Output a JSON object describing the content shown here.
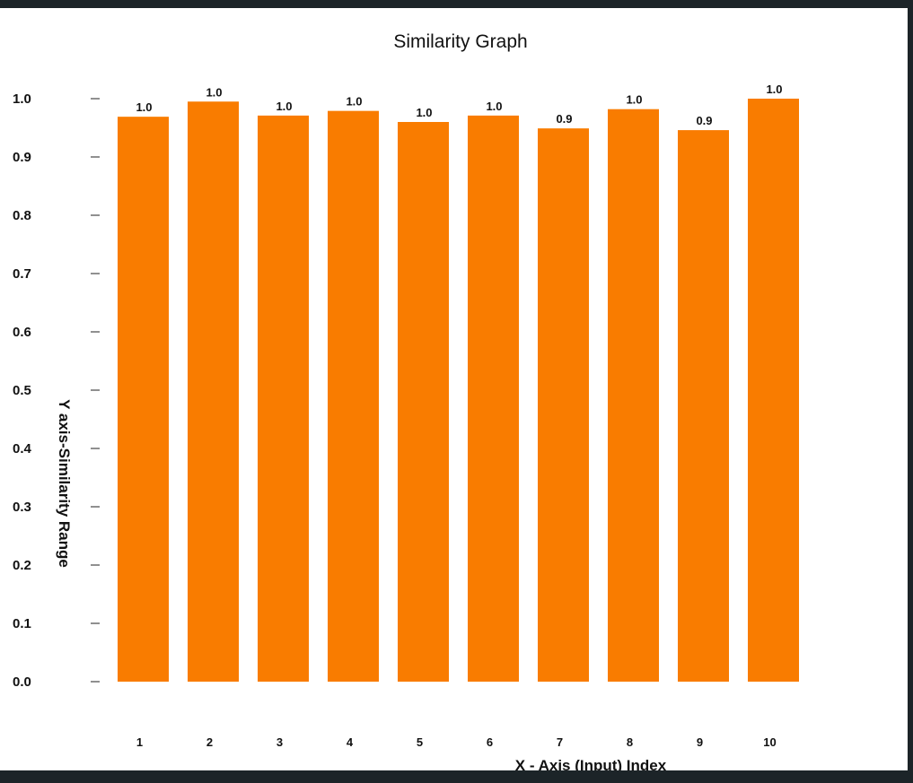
{
  "chart_data": {
    "type": "bar",
    "title": "Similarity Graph",
    "xlabel": "X - Axis (Input) Index",
    "ylabel": "Y axis-Similarity Range",
    "categories": [
      "1",
      "2",
      "3",
      "4",
      "5",
      "6",
      "7",
      "8",
      "9",
      "10"
    ],
    "values": [
      0.969,
      0.995,
      0.971,
      0.979,
      0.96,
      0.971,
      0.949,
      0.982,
      0.946,
      1.0
    ],
    "data_labels": [
      "1.0",
      "1.0",
      "1.0",
      "1.0",
      "1.0",
      "1.0",
      "0.9",
      "1.0",
      "0.9",
      "1.0"
    ],
    "yticks": [
      "0.0",
      "0.1",
      "0.2",
      "0.3",
      "0.4",
      "0.5",
      "0.6",
      "0.7",
      "0.8",
      "0.9",
      "1.0"
    ],
    "ylim": [
      0,
      1.0
    ],
    "grid": false,
    "legend": "none",
    "bar_color": "#f97c00",
    "background_color": "#ffffff",
    "frame_color": "#1c2428"
  }
}
